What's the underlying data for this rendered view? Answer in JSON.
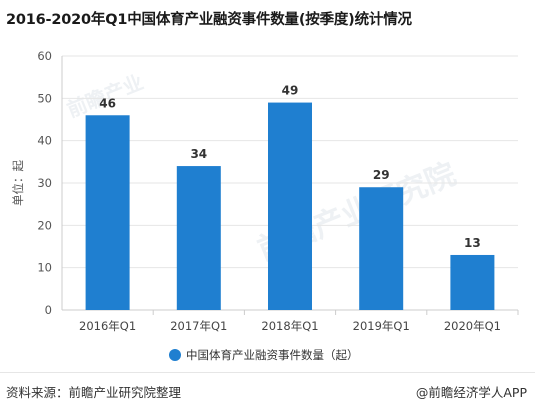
{
  "title": "2016-2020年Q1中国体育产业融资事件数量(按季度)统计情况",
  "footer": {
    "source": "资料来源：前瞻产业研究院整理",
    "brand": "@前瞻经济学人APP"
  },
  "watermark": {
    "text": "前瞻产业研究院",
    "small": "前瞻产业"
  },
  "colors": {
    "bar": "#1f7fd0",
    "axis": "#cccccc",
    "grid": "#e6e6e6"
  },
  "chart_data": {
    "type": "bar",
    "title": "2016-2020年Q1中国体育产业融资事件数量(按季度)统计情况",
    "categories": [
      "2016年Q1",
      "2017年Q1",
      "2018年Q1",
      "2019年Q1",
      "2020年Q1"
    ],
    "series": [
      {
        "name": "中国体育产业融资事件数量（起）",
        "values": [
          46,
          34,
          49,
          29,
          13
        ]
      }
    ],
    "data_labels": [
      "46",
      "34",
      "49",
      "29",
      "13"
    ],
    "ylabel": "单位：起",
    "xlabel": "",
    "ylim": [
      0,
      60
    ],
    "yticks": [
      0,
      10,
      20,
      30,
      40,
      50,
      60
    ],
    "grid": true,
    "legend": "bottom"
  }
}
